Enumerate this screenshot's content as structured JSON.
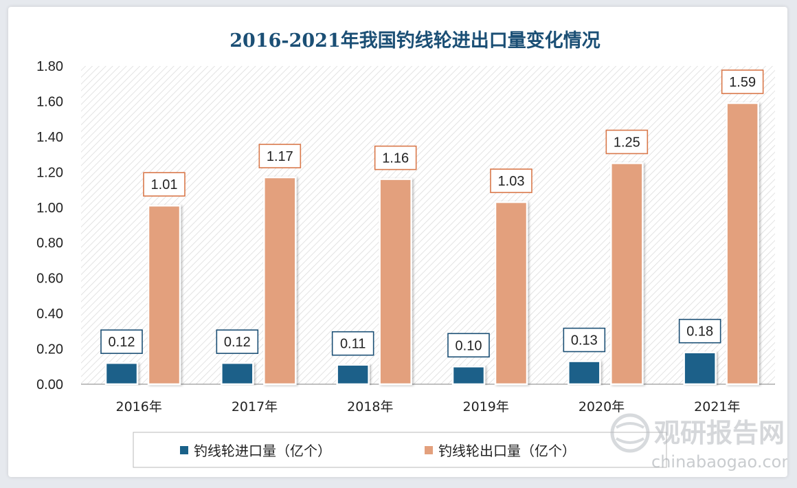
{
  "colors": {
    "import": "#1a6189",
    "export": "#e3a07d",
    "title": "#1b4f75",
    "label_border_import": "#1b4f75",
    "label_border_export": "#d9784a"
  },
  "chart_data": {
    "type": "bar",
    "title": "2016-2021年我国钓线轮进出口量变化情况",
    "categories": [
      "2016年",
      "2017年",
      "2018年",
      "2019年",
      "2020年",
      "2021年"
    ],
    "series": [
      {
        "name": "钓线轮进口量（亿个）",
        "values": [
          0.12,
          0.12,
          0.11,
          0.1,
          0.13,
          0.18
        ],
        "labels": [
          "0.12",
          "0.12",
          "0.11",
          "0.10",
          "0.13",
          "0.18"
        ]
      },
      {
        "name": "钓线轮出口量（亿个）",
        "values": [
          1.01,
          1.17,
          1.16,
          1.03,
          1.25,
          1.59
        ],
        "labels": [
          "1.01",
          "1.17",
          "1.16",
          "1.03",
          "1.25",
          "1.59"
        ]
      }
    ],
    "yticks": [
      "0.00",
      "0.20",
      "0.40",
      "0.60",
      "0.80",
      "1.00",
      "1.20",
      "1.40",
      "1.60",
      "1.80"
    ],
    "ylim": [
      0,
      1.8
    ],
    "xlabel": "",
    "ylabel": "",
    "grid": false,
    "legend_position": "bottom"
  },
  "watermark": {
    "name": "观研报告网",
    "url": "chinabaogao.com"
  }
}
